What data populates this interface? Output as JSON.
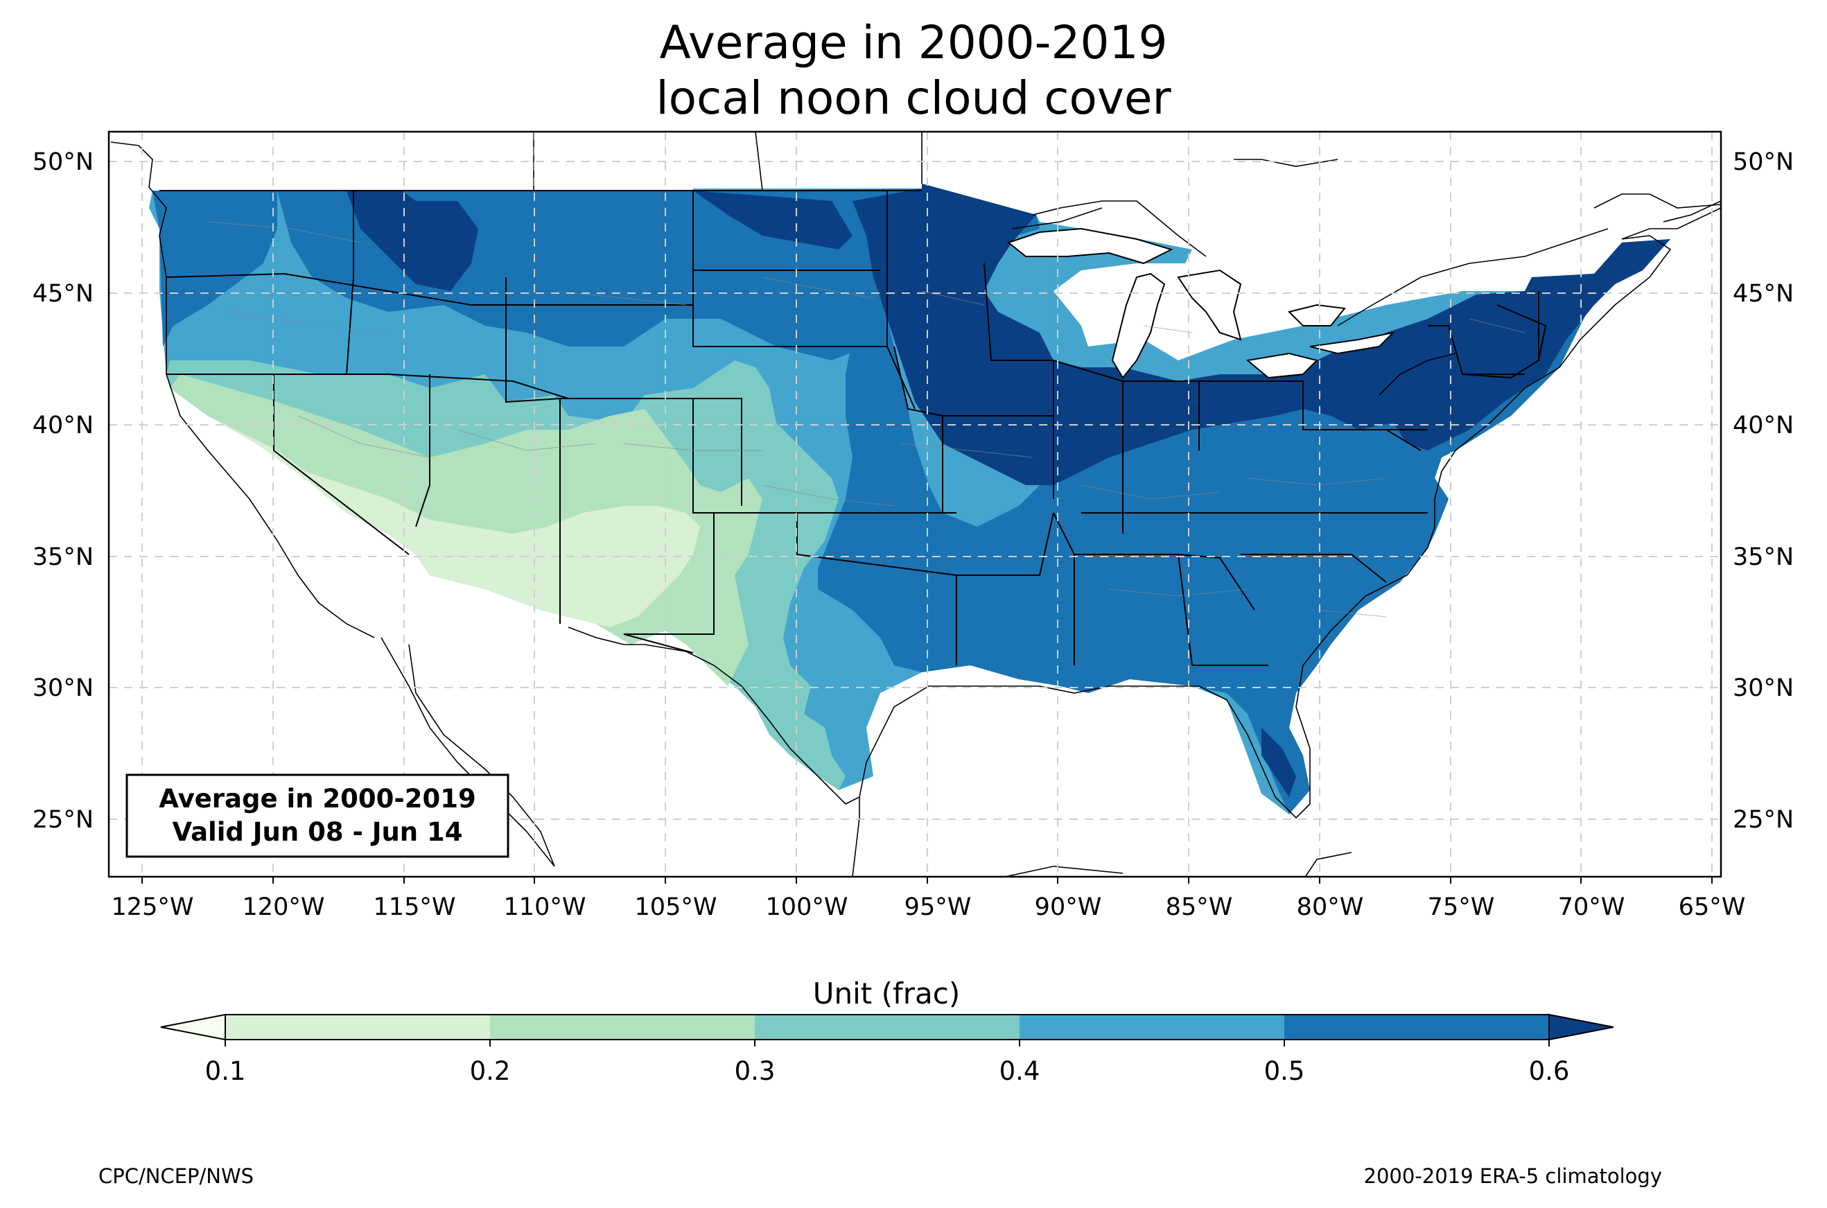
{
  "title": {
    "line1": "Average in 2000-2019",
    "line2": "local noon cloud cover"
  },
  "map": {
    "lon_labels": [
      "125°W",
      "120°W",
      "115°W",
      "110°W",
      "105°W",
      "100°W",
      "95°W",
      "90°W",
      "85°W",
      "80°W",
      "75°W",
      "70°W",
      "65°W"
    ],
    "lat_labels": [
      "50°N",
      "45°N",
      "40°N",
      "35°N",
      "30°N",
      "25°N"
    ],
    "inset": {
      "line1": "Average in 2000-2019",
      "line2": "Valid Jun 08 - Jun 14"
    }
  },
  "colorbar": {
    "label": "Unit (frac)",
    "ticks": [
      "0.1",
      "0.2",
      "0.3",
      "0.4",
      "0.5",
      "0.6"
    ],
    "colors": [
      "#f7fcf0",
      "#d8f0d3",
      "#b2e1bd",
      "#7ccbc5",
      "#44a5cf",
      "#1a73b2",
      "#0a3f84"
    ]
  },
  "footer": {
    "left": "CPC/NCEP/NWS",
    "right": "2000-2019 ERA-5 climatology"
  }
}
